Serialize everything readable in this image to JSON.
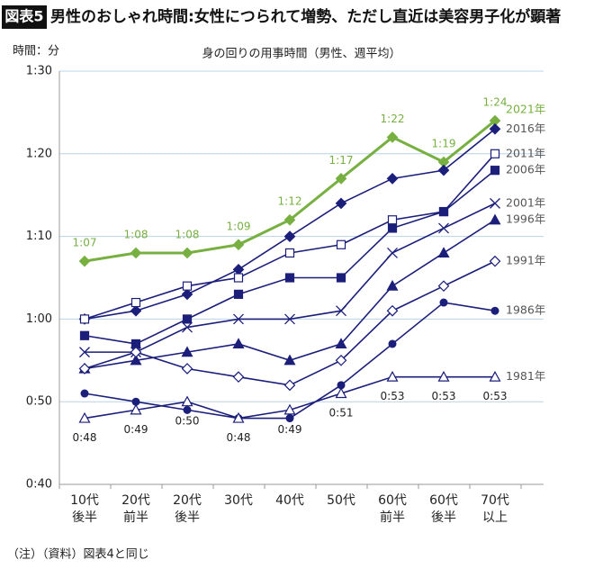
{
  "chart_data": {
    "type": "line",
    "badge": "図表5",
    "title": "男性のおしゃれ時間:女性につられて増勢、ただし直近は美容男子化が顕著",
    "subtitle": "身の回りの用事時間（男性、週平均）",
    "y_axis_label": "時間：分",
    "footnote": "（注）（資料）図表4と同じ",
    "categories": [
      [
        "10代",
        "後半"
      ],
      [
        "20代",
        "前半"
      ],
      [
        "20代",
        "後半"
      ],
      [
        "30代"
      ],
      [
        "40代"
      ],
      [
        "50代"
      ],
      [
        "60代",
        "前半"
      ],
      [
        "60代",
        "後半"
      ],
      [
        "70代",
        "以上"
      ]
    ],
    "ylim": [
      40,
      90
    ],
    "yticks": [
      {
        "value": 40,
        "label": "0:40"
      },
      {
        "value": 50,
        "label": "0:50"
      },
      {
        "value": 60,
        "label": "1:00"
      },
      {
        "value": 70,
        "label": "1:10"
      },
      {
        "value": 80,
        "label": "1:20"
      },
      {
        "value": 90,
        "label": "1:30"
      }
    ],
    "grid": true,
    "series": [
      {
        "name": "2021年",
        "color": "#77b041",
        "marker": "diamond",
        "values": [
          67,
          68,
          68,
          69,
          72,
          77,
          82,
          79,
          84
        ],
        "value_labels": [
          "1:07",
          "1:08",
          "1:08",
          "1:09",
          "1:12",
          "1:17",
          "1:22",
          "1:19",
          "1:24"
        ]
      },
      {
        "name": "2016年",
        "color": "#1c1f7a",
        "marker": "diamond",
        "values": [
          60,
          61,
          63,
          66,
          70,
          74,
          77,
          78,
          83
        ]
      },
      {
        "name": "2011年",
        "color": "#1c1f7a",
        "marker": "square-open",
        "values": [
          60,
          62,
          64,
          65,
          68,
          69,
          72,
          73,
          80
        ]
      },
      {
        "name": "2006年",
        "color": "#1c1f7a",
        "marker": "square",
        "values": [
          58,
          57,
          60,
          63,
          65,
          65,
          71,
          73,
          78
        ]
      },
      {
        "name": "2001年",
        "color": "#1c1f7a",
        "marker": "x",
        "values": [
          56,
          56,
          59,
          60,
          60,
          61,
          68,
          71,
          74
        ]
      },
      {
        "name": "1996年",
        "color": "#1c1f7a",
        "marker": "triangle",
        "values": [
          54,
          55,
          56,
          57,
          55,
          57,
          64,
          68,
          72
        ]
      },
      {
        "name": "1991年",
        "color": "#1c1f7a",
        "marker": "diamond-open",
        "values": [
          54,
          56,
          54,
          53,
          52,
          55,
          61,
          64,
          67
        ]
      },
      {
        "name": "1986年",
        "color": "#1c1f7a",
        "marker": "circle",
        "values": [
          51,
          50,
          49,
          48,
          48,
          52,
          57,
          62,
          61
        ]
      },
      {
        "name": "1981年",
        "color": "#1c1f7a",
        "marker": "triangle-open",
        "values": [
          48,
          49,
          50,
          48,
          49,
          51,
          53,
          53,
          53
        ],
        "value_labels": [
          "0:48",
          "0:49",
          "0:50",
          "0:48",
          "0:49",
          "0:51",
          "0:53",
          "0:53",
          "0:53"
        ]
      }
    ]
  }
}
